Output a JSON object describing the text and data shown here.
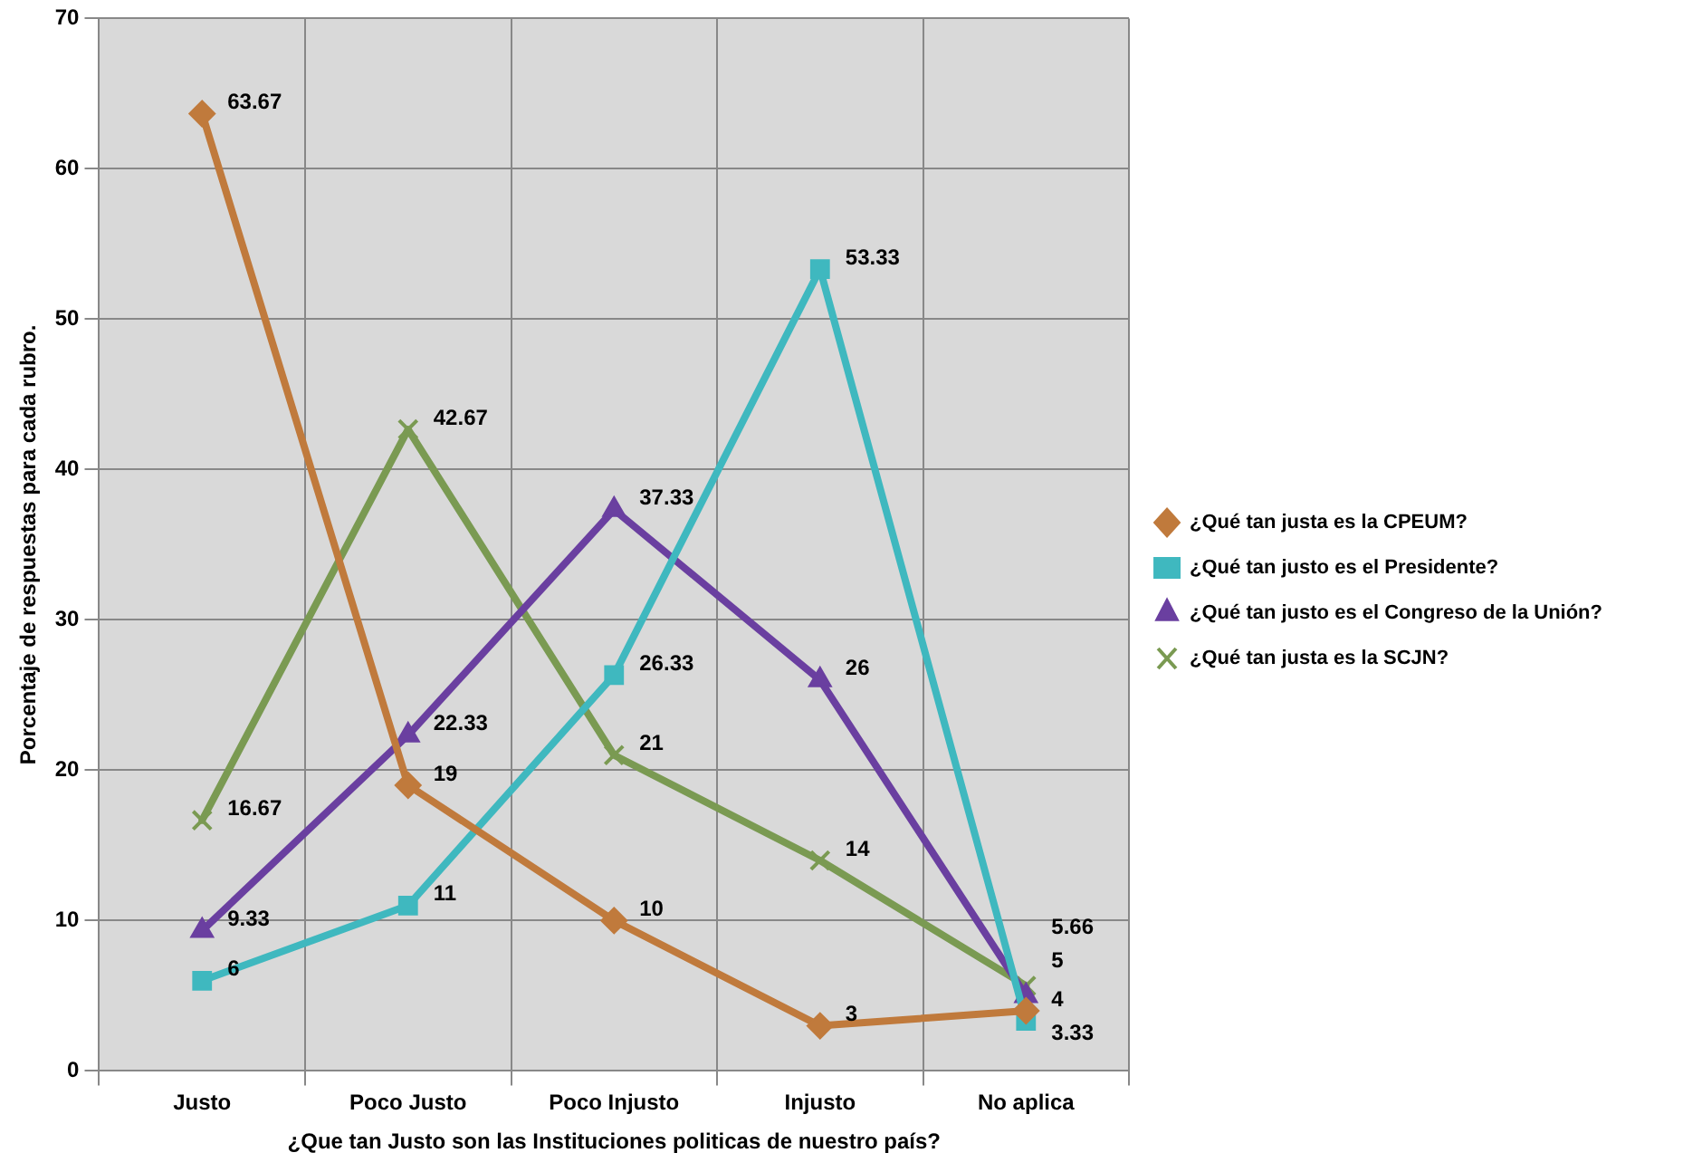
{
  "chart_data": {
    "type": "line",
    "xlabel": "¿Que tan Justo son las Instituciones politicas de nuestro país?",
    "ylabel": "Porcentaje de respuestas para cada rubro.",
    "categories": [
      "Justo",
      "Poco Justo",
      "Poco Injusto",
      "Injusto",
      "No aplica"
    ],
    "series": [
      {
        "name": "¿Qué tan justa es la CPEUM?",
        "color": "#c07a3c",
        "marker": "diamond",
        "values": [
          63.67,
          19,
          10,
          3,
          4
        ]
      },
      {
        "name": "¿Qué tan justo es el Presidente?",
        "color": "#3fb8bf",
        "marker": "square",
        "values": [
          6,
          11,
          26.33,
          53.33,
          3.33
        ]
      },
      {
        "name": "¿Qué tan justo es el Congreso de la Unión?",
        "color": "#6a3fa0",
        "marker": "triangle",
        "values": [
          9.33,
          22.33,
          37.33,
          26,
          5
        ]
      },
      {
        "name": "¿Qué tan justa es la SCJN?",
        "color": "#7a9a52",
        "marker": "cross",
        "values": [
          16.67,
          42.67,
          21,
          14,
          5.66
        ]
      }
    ],
    "ylim": [
      0,
      70
    ],
    "yticks": [
      0,
      10,
      20,
      30,
      40,
      50,
      60,
      70
    ],
    "grid": true,
    "legend": "right",
    "data_labels": true
  }
}
